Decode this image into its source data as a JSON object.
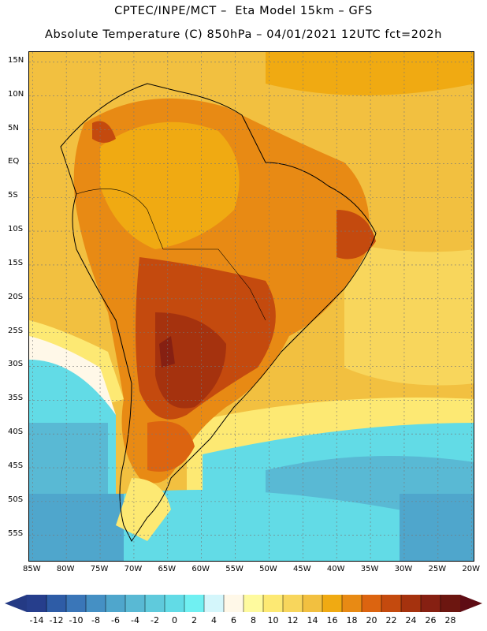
{
  "header": {
    "line1": "CPTEC/INPE/MCT –  Eta Model 15km – GFS",
    "line2": "Absolute Temperature (C) 850hPa – 04/01/2021 12UTC fct=202h"
  },
  "map": {
    "variable": "Absolute Temperature (C)",
    "level": "850hPa",
    "lat_range": [
      -59,
      16.5
    ],
    "lon_range": [
      -85.5,
      -19.5
    ],
    "lat_labels": [
      "15N",
      "10N",
      "5N",
      "EQ",
      "5S",
      "10S",
      "15S",
      "20S",
      "25S",
      "30S",
      "35S",
      "40S",
      "45S",
      "50S",
      "55S"
    ],
    "lat_values": [
      15,
      10,
      5,
      0,
      -5,
      -10,
      -15,
      -20,
      -25,
      -30,
      -35,
      -40,
      -45,
      -50,
      -55
    ],
    "lon_labels": [
      "85W",
      "80W",
      "75W",
      "70W",
      "65W",
      "60W",
      "55W",
      "50W",
      "45W",
      "40W",
      "35W",
      "30W",
      "25W",
      "20W"
    ],
    "lon_values": [
      -85,
      -80,
      -75,
      -70,
      -65,
      -60,
      -55,
      -50,
      -45,
      -40,
      -35,
      -30,
      -25,
      -20
    ]
  },
  "colorbar": {
    "labels": [
      "-14",
      "-12",
      "-10",
      "-8",
      "-6",
      "-4",
      "-2",
      "0",
      "2",
      "4",
      "6",
      "8",
      "10",
      "12",
      "14",
      "16",
      "18",
      "20",
      "22",
      "24",
      "26",
      "28"
    ],
    "colors": [
      "#263e8c",
      "#2e5ca6",
      "#3a76b8",
      "#4590c4",
      "#4fa6cc",
      "#59b9d4",
      "#5fcadc",
      "#62dbe6",
      "#70f0f2",
      "#d4f6fb",
      "#fff8e8",
      "#fefa9e",
      "#fde973",
      "#f8d65c",
      "#f2c040",
      "#f0aa12",
      "#e88a14",
      "#dc6410",
      "#c44a0e",
      "#a5320e",
      "#862012",
      "#6c1610"
    ],
    "under_color": "#243a84",
    "over_color": "#5e0c14"
  }
}
